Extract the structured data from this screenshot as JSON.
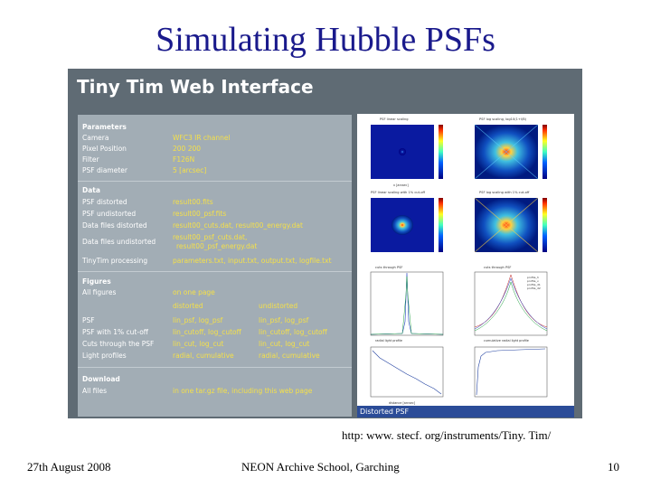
{
  "slide": {
    "title": "Simulating Hubble PSFs",
    "url": "http: www. stecf. org/instruments/Tiny. Tim/",
    "footer_left": "27th August 2008",
    "footer_center": "NEON Archive School, Garching",
    "footer_right": "10"
  },
  "app": {
    "title": "Tiny Tim Web Interface",
    "parameters": {
      "heading": "Parameters",
      "rows": [
        {
          "key": "Camera",
          "value": "WFC3 IR channel"
        },
        {
          "key": "Pixel Position",
          "value": "200 200"
        },
        {
          "key": "Filter",
          "value": "F126N"
        },
        {
          "key": "PSF diameter",
          "value": "5 [arcsec]"
        }
      ]
    },
    "data": {
      "heading": "Data",
      "rows": [
        {
          "key": "PSF distorted",
          "value": "result00.fits"
        },
        {
          "key": "PSF undistorted",
          "value": "result00_psf.fits"
        },
        {
          "key": "Data files distorted",
          "value": "result00_cuts.dat,   result00_energy.dat"
        },
        {
          "key": "Data files undistorted",
          "value": "result00_psf_cuts.dat,",
          "value2": "result00_psf_energy.dat"
        },
        {
          "key": "TinyTim processing",
          "value": "parameters.txt,  input.txt,  output.txt,  logfile.txt"
        }
      ]
    },
    "figures": {
      "heading": "Figures",
      "all_key": "All figures",
      "all_value": "on one page",
      "col_distorted": "distorted",
      "col_undistorted": "undistorted",
      "rows": [
        {
          "key": "PSF",
          "d": "lin_psf,   log_psf",
          "u": "lin_psf,   log_psf"
        },
        {
          "key": "PSF with 1% cut-off",
          "d": "lin_cutoff,   log_cutoff",
          "u": "lin_cutoff,   log_cutoff"
        },
        {
          "key": "Cuts through the PSF",
          "d": "lin_cut,   log_cut",
          "u": "lin_cut,   log_cut"
        },
        {
          "key": "Light profiles",
          "d": "radial,   cumulative",
          "u": "radial,   cumulative"
        }
      ]
    },
    "download": {
      "heading": "Download",
      "key": "All files",
      "value": "in one tar.gz file, including this web page"
    },
    "plot_footer": "Distorted PSF",
    "plot_titles": [
      "PSF linear scaling",
      "PSF log scaling, log10(1+I/B)",
      "PSF linear scaling with 1% cut-off",
      "PSF log scaling with 1% cut-off",
      "cuts through PSF",
      "cuts through PSF"
    ],
    "plot_axis_labels": [
      "x [arcsec]",
      "radial light profile",
      "cumulative radial light profile",
      "distance [arcsec]"
    ],
    "legend": [
      "profile_h",
      "profile_v",
      "profile_d1",
      "profile_d2"
    ],
    "colors": {
      "screenshot_bg": "#5f6b74",
      "panel_bg": "#a2adb5",
      "value_yellow": "#f4e04a",
      "title_blue": "#1a1a8c",
      "footer_bar": "#2b4c98"
    }
  }
}
